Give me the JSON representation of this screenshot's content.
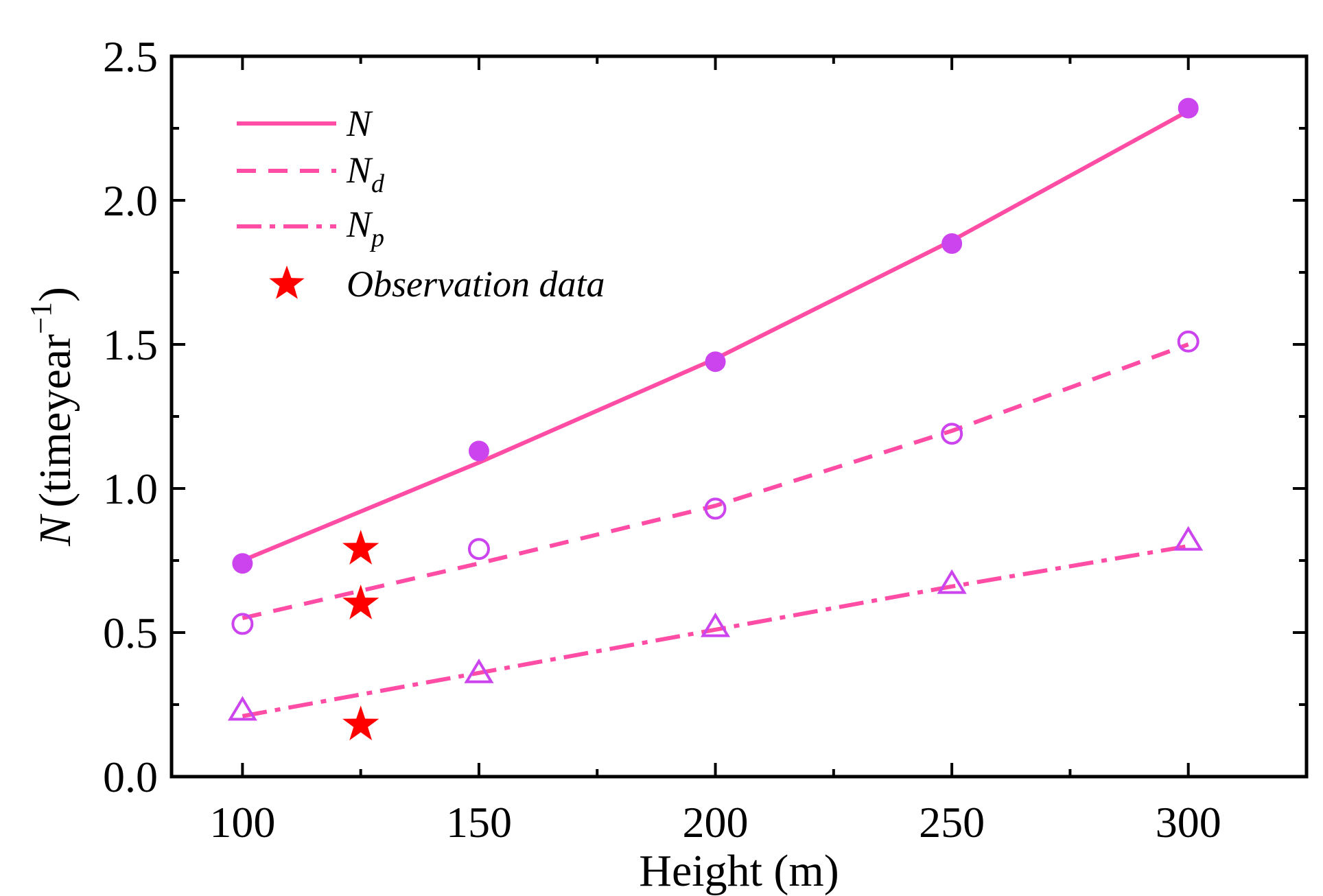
{
  "chart_data": {
    "type": "line",
    "xlabel": "Height (m)",
    "ylabel": {
      "symbol": "N",
      "text": "(timeyear",
      "sup": "−1",
      "close": ")"
    },
    "xlim": [
      85,
      325
    ],
    "ylim": [
      0,
      2.5
    ],
    "xticks": [
      100,
      150,
      200,
      250,
      300
    ],
    "xtick_labels": [
      "100",
      "150",
      "200",
      "250",
      "300"
    ],
    "yticks": [
      0,
      0.5,
      1.0,
      1.5,
      2.0,
      2.5
    ],
    "ytick_labels": [
      "0.0",
      "0.5",
      "1.0",
      "1.5",
      "2.0",
      "2.5"
    ],
    "grid": false,
    "legend_position": "top-left",
    "colors": {
      "line": "#ff4da6",
      "marker": "#cc44ee",
      "star": "#ff0000"
    },
    "series": [
      {
        "name": "N",
        "sub": "",
        "style": "solid",
        "x": [
          100,
          150,
          200,
          250,
          300
        ],
        "line": [
          0.75,
          1.09,
          1.45,
          1.86,
          2.31
        ],
        "marker": "filled-circle",
        "points": [
          0.74,
          1.13,
          1.44,
          1.85,
          2.32
        ]
      },
      {
        "name": "N",
        "sub": "d",
        "style": "dash",
        "x": [
          100,
          150,
          200,
          250,
          300
        ],
        "line": [
          0.55,
          0.74,
          0.94,
          1.2,
          1.5
        ],
        "marker": "open-circle",
        "points": [
          0.53,
          0.79,
          0.93,
          1.19,
          1.51
        ]
      },
      {
        "name": "N",
        "sub": "p",
        "style": "dashdot",
        "x": [
          100,
          150,
          200,
          250,
          300
        ],
        "line": [
          0.21,
          0.36,
          0.51,
          0.66,
          0.8
        ],
        "marker": "open-triangle",
        "points": [
          0.23,
          0.36,
          0.52,
          0.67,
          0.82
        ]
      }
    ],
    "observations": {
      "name": "Observation data",
      "marker": "star",
      "x": [
        125,
        125,
        125
      ],
      "y": [
        0.79,
        0.6,
        0.18
      ]
    }
  }
}
